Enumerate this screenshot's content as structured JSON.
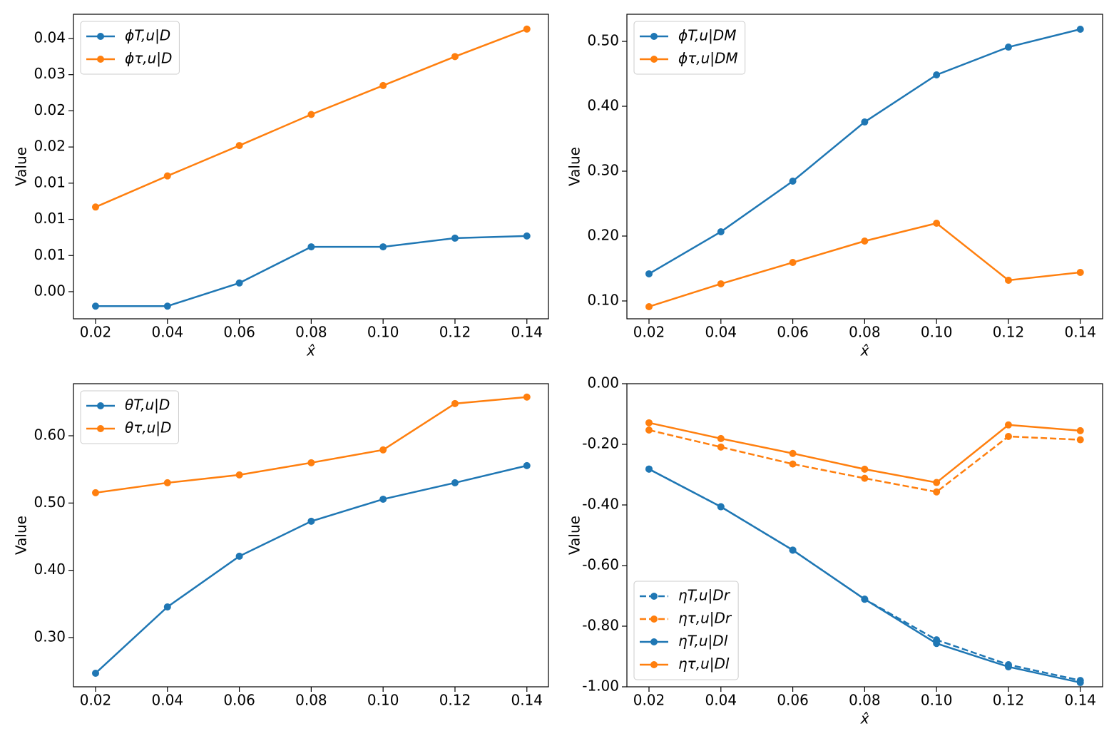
{
  "chart_data": [
    {
      "type": "line",
      "x_label": "x̂",
      "y_label": "Value",
      "x": [
        0.02,
        0.04,
        0.06,
        0.08,
        0.1,
        0.12,
        0.14
      ],
      "xlim": [
        0.01385,
        0.146
      ],
      "xticks": [
        0.02,
        0.04,
        0.06,
        0.08,
        {
          "value": 0.1,
          "label": "0.10"
        },
        0.12,
        0.14
      ],
      "ylim": [
        -0.00375,
        0.03835
      ],
      "yticks": [
        {
          "value": 0,
          "label": "0.00"
        },
        {
          "value": 0.005,
          "label": "0.01"
        },
        {
          "value": 0.01,
          "label": "0.01"
        },
        {
          "value": 0.015,
          "label": "0.01"
        },
        {
          "value": 0.02,
          "label": "0.02"
        },
        {
          "value": 0.025,
          "label": "0.02"
        },
        {
          "value": 0.03,
          "label": "0.03"
        },
        {
          "value": 0.035,
          "label": "0.04"
        }
      ],
      "legend": "upper left",
      "series": [
        {
          "name": "ϕT,u|D",
          "color": "#1f77b4",
          "linestyle": "solid",
          "values": [
            -0.002,
            -0.002,
            0.0012,
            0.0062,
            0.0062,
            0.0074,
            0.0077
          ]
        },
        {
          "name": "ϕτ,u|D",
          "color": "#ff7f0e",
          "linestyle": "solid",
          "values": [
            0.0117,
            0.016,
            0.0202,
            0.0245,
            0.0285,
            0.0325,
            0.0363
          ]
        }
      ]
    },
    {
      "type": "line",
      "x_label": "x̂",
      "y_label": "Value",
      "x": [
        0.02,
        0.04,
        0.06,
        0.08,
        0.1,
        0.12,
        0.14
      ],
      "xlim": [
        0.01385,
        0.1462
      ],
      "xticks": [
        0.02,
        0.04,
        0.06,
        0.08,
        {
          "value": 0.1,
          "label": "0.10"
        },
        0.12,
        0.14
      ],
      "ylim": [
        0.0725,
        0.5418
      ],
      "yticks": [
        {
          "value": 0.1,
          "label": "0.10"
        },
        {
          "value": 0.2,
          "label": "0.20"
        },
        {
          "value": 0.3,
          "label": "0.30"
        },
        {
          "value": 0.4,
          "label": "0.40"
        },
        {
          "value": 0.5,
          "label": "0.50"
        }
      ],
      "legend": "upper left",
      "series": [
        {
          "name": "ϕT,u|DM",
          "color": "#1f77b4",
          "linestyle": "solid",
          "values": [
            0.1418,
            0.2066,
            0.2846,
            0.3758,
            0.4484,
            0.4912,
            0.5187
          ]
        },
        {
          "name": "ϕτ,u|DM",
          "color": "#ff7f0e",
          "linestyle": "solid",
          "values": [
            0.0912,
            0.1264,
            0.1593,
            0.1923,
            0.2198,
            0.1319,
            0.144
          ]
        }
      ]
    },
    {
      "type": "line",
      "y_label": "Value",
      "x": [
        0.02,
        0.04,
        0.06,
        0.08,
        0.1,
        0.12,
        0.14
      ],
      "xlim": [
        0.01385,
        0.146
      ],
      "xticks": [
        0.02,
        0.04,
        0.06,
        0.08,
        {
          "value": 0.1,
          "label": "0.10"
        },
        0.12,
        0.14
      ],
      "ylim": [
        0.2268,
        0.6774
      ],
      "yticks": [
        {
          "value": 0.3,
          "label": "0.30"
        },
        {
          "value": 0.4,
          "label": "0.40"
        },
        {
          "value": 0.5,
          "label": "0.50"
        },
        {
          "value": 0.6,
          "label": "0.60"
        }
      ],
      "legend": "upper left",
      "series": [
        {
          "name": "θT,u|D",
          "color": "#1f77b4",
          "linestyle": "solid",
          "values": [
            0.247,
            0.3456,
            0.4209,
            0.4729,
            0.5057,
            0.5301,
            0.5556
          ]
        },
        {
          "name": "θτ,u|D",
          "color": "#ff7f0e",
          "linestyle": "solid",
          "values": [
            0.5153,
            0.5301,
            0.5418,
            0.5599,
            0.579,
            0.6479,
            0.6575
          ]
        }
      ]
    },
    {
      "type": "line",
      "x_label": "x̂",
      "y_label": "Value",
      "x": [
        0.02,
        0.04,
        0.06,
        0.08,
        0.1,
        0.12,
        0.14
      ],
      "xlim": [
        0.01385,
        0.1462
      ],
      "xticks": [
        0.02,
        0.04,
        0.06,
        0.08,
        {
          "value": 0.1,
          "label": "0.10"
        },
        0.12,
        0.14
      ],
      "ylim": [
        -1,
        0
      ],
      "yticks": [
        {
          "value": -1,
          "label": "-1.00"
        },
        {
          "value": -0.8,
          "label": "-0.80"
        },
        {
          "value": -0.6,
          "label": "-0.60"
        },
        {
          "value": -0.4,
          "label": "-0.40"
        },
        {
          "value": -0.2,
          "label": "-0.20"
        },
        {
          "value": 0,
          "label": "0.00"
        }
      ],
      "legend": "lower left",
      "series": [
        {
          "name": "ηT,u|Dr",
          "color": "#1f77b4",
          "linestyle": "dashed",
          "values": [
            -0.2817,
            -0.406,
            -0.549,
            -0.711,
            -0.845,
            -0.927,
            -0.979
          ]
        },
        {
          "name": "ητ,u|Dr",
          "color": "#ff7f0e",
          "linestyle": "dashed",
          "values": [
            -0.153,
            -0.209,
            -0.265,
            -0.312,
            -0.357,
            -0.174,
            -0.185
          ]
        },
        {
          "name": "ηT,u|Dl",
          "color": "#1f77b4",
          "linestyle": "solid",
          "values": [
            -0.2817,
            -0.406,
            -0.549,
            -0.711,
            -0.857,
            -0.934,
            -0.986
          ]
        },
        {
          "name": "ητ,u|Dl",
          "color": "#ff7f0e",
          "linestyle": "solid",
          "values": [
            -0.129,
            -0.181,
            -0.23,
            -0.282,
            -0.326,
            -0.136,
            -0.155
          ]
        }
      ]
    }
  ]
}
